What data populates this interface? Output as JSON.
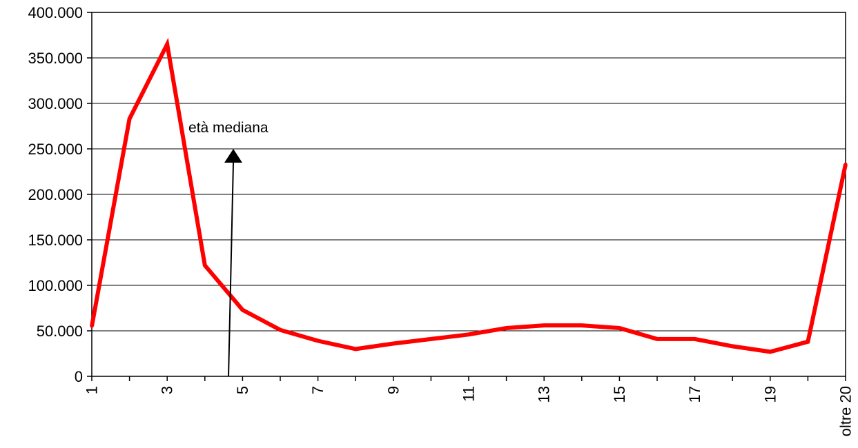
{
  "chart_data": {
    "type": "line",
    "title": "",
    "xlabel": "",
    "ylabel": "",
    "ylim": [
      0,
      400000
    ],
    "y_ticks": [
      0,
      50000,
      100000,
      150000,
      200000,
      250000,
      300000,
      350000,
      400000
    ],
    "y_tick_labels": [
      "0",
      "50.000",
      "100.000",
      "150.000",
      "200.000",
      "250.000",
      "300.000",
      "350.000",
      "400.000"
    ],
    "categories": [
      "1",
      "2",
      "3",
      "4",
      "5",
      "6",
      "7",
      "8",
      "9",
      "10",
      "11",
      "12",
      "13",
      "14",
      "15",
      "16",
      "17",
      "18",
      "19",
      "20",
      "oltre 20"
    ],
    "x_tick_labels_shown": [
      "1",
      "3",
      "5",
      "7",
      "9",
      "11",
      "13",
      "15",
      "17",
      "19",
      "oltre 20"
    ],
    "series": [
      {
        "values": [
          55000,
          283000,
          365000,
          122000,
          73000,
          51000,
          39000,
          30000,
          36000,
          41000,
          46000,
          53000,
          56000,
          56000,
          53000,
          41000,
          41000,
          33000,
          27000,
          38000,
          233000
        ],
        "color": "#ff0000"
      }
    ],
    "annotations": [
      {
        "text": "età mediana",
        "x_category_position": 4.7,
        "arrow_from_value": 0,
        "arrow_to_value": 250000
      }
    ],
    "grid": "horizontal",
    "legend": "none"
  }
}
